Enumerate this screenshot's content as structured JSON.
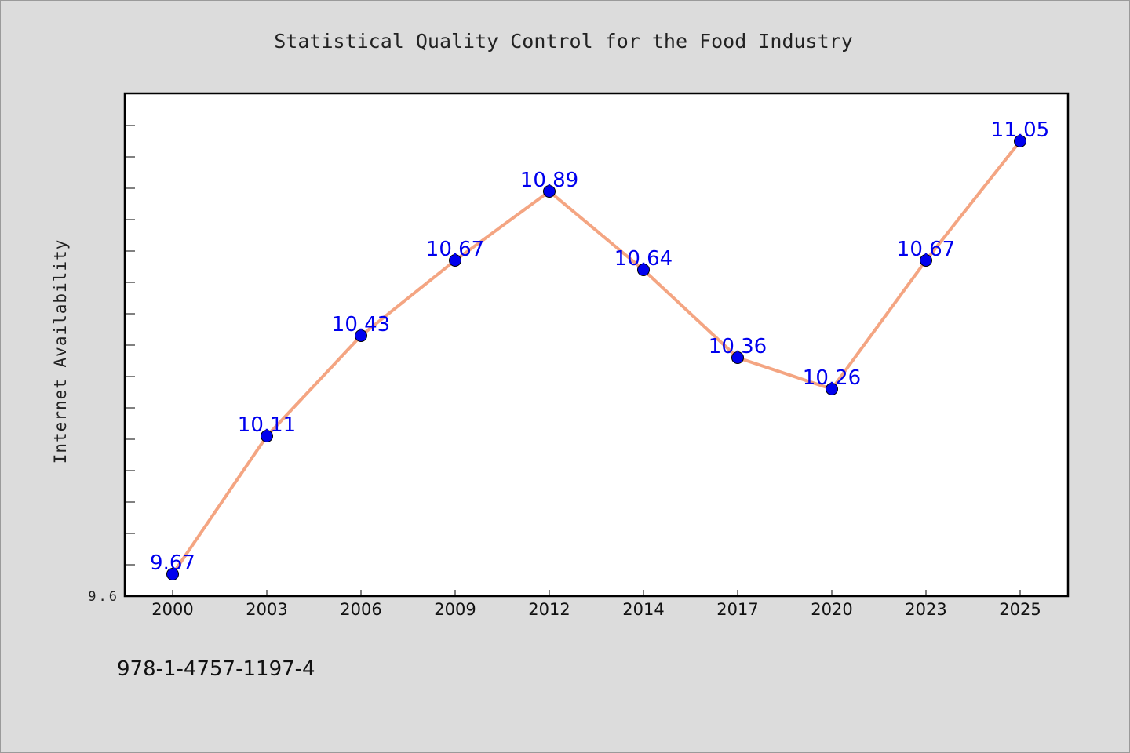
{
  "chart_data": {
    "type": "line",
    "title": "Statistical Quality Control for the Food Industry",
    "xlabel": "",
    "ylabel": "Internet Availability",
    "categories": [
      "2000",
      "2003",
      "2006",
      "2009",
      "2012",
      "2014",
      "2017",
      "2020",
      "2023",
      "2025"
    ],
    "values": [
      9.67,
      10.11,
      10.43,
      10.67,
      10.89,
      10.64,
      10.36,
      10.26,
      10.67,
      11.05
    ],
    "data_labels": [
      "9.67",
      "10.11",
      "10.43",
      "10.67",
      "10.89",
      "10.64",
      "10.36",
      "10.26",
      "10.67",
      "11.05"
    ],
    "ylim": [
      9.6,
      11.2
    ],
    "yticks_labeled": [
      "9.6"
    ],
    "ytick_step": 0.1,
    "grid": false,
    "legend": "none",
    "line_color": "#f4a582",
    "marker_color": "#0000ee",
    "label_color": "#0000ee"
  },
  "footnote": "978-1-4757-1197-4"
}
